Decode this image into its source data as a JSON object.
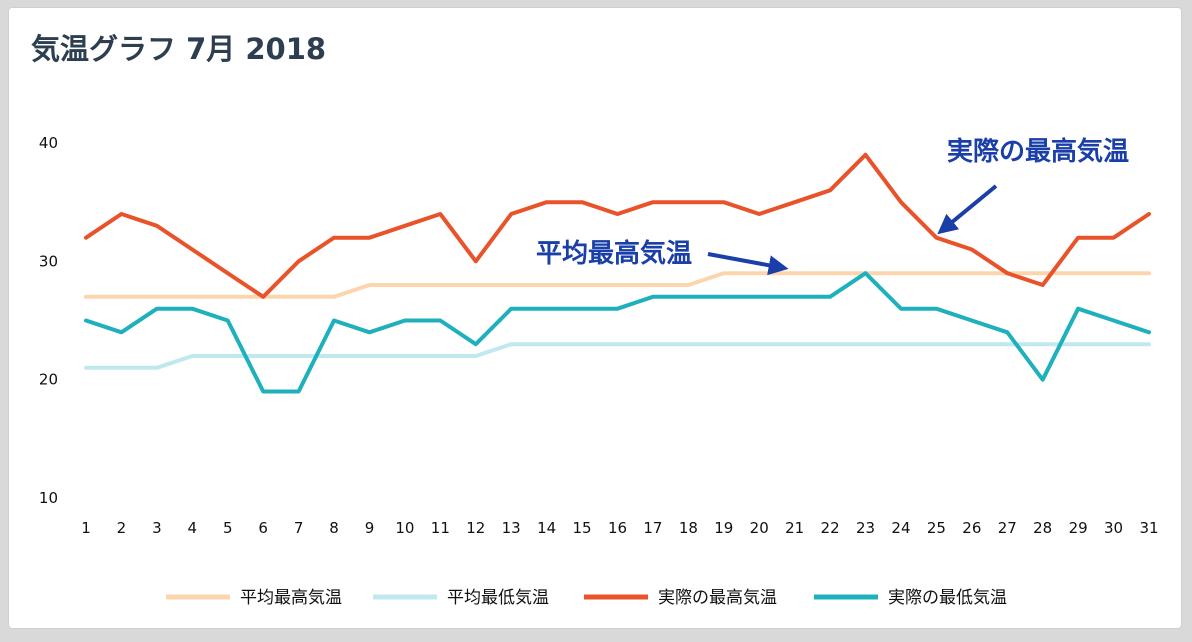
{
  "chart_data": {
    "type": "line",
    "title": "気温グラフ 7月 2018",
    "x": [
      1,
      2,
      3,
      4,
      5,
      6,
      7,
      8,
      9,
      10,
      11,
      12,
      13,
      14,
      15,
      16,
      17,
      18,
      19,
      20,
      21,
      22,
      23,
      24,
      25,
      26,
      27,
      28,
      29,
      30,
      31
    ],
    "ylim": [
      10,
      40
    ],
    "yticks": [
      10,
      20,
      30,
      40
    ],
    "xlabel": "",
    "ylabel": "",
    "grid": false,
    "legend_position": "bottom",
    "series": [
      {
        "name": "平均最高気温",
        "color": "#fdd5ad",
        "values": [
          27,
          27,
          27,
          27,
          27,
          27,
          27,
          27,
          28,
          28,
          28,
          28,
          28,
          28,
          28,
          28,
          28,
          28,
          29,
          29,
          29,
          29,
          29,
          29,
          29,
          29,
          29,
          29,
          29,
          29,
          29
        ]
      },
      {
        "name": "平均最低気温",
        "color": "#bfe8ef",
        "values": [
          21,
          21,
          21,
          22,
          22,
          22,
          22,
          22,
          22,
          22,
          22,
          22,
          23,
          23,
          23,
          23,
          23,
          23,
          23,
          23,
          23,
          23,
          23,
          23,
          23,
          23,
          23,
          23,
          23,
          23,
          23
        ]
      },
      {
        "name": "実際の最高気温",
        "color": "#e8532a",
        "values": [
          32,
          34,
          33,
          31,
          29,
          27,
          30,
          32,
          32,
          33,
          34,
          30,
          34,
          35,
          35,
          34,
          35,
          35,
          35,
          34,
          35,
          36,
          39,
          35,
          32,
          31,
          29,
          28,
          32,
          32,
          34
        ]
      },
      {
        "name": "実際の最低気温",
        "color": "#1fb0bd",
        "values": [
          25,
          24,
          26,
          26,
          25,
          19,
          19,
          25,
          24,
          25,
          25,
          23,
          26,
          26,
          26,
          26,
          27,
          27,
          27,
          27,
          27,
          27,
          29,
          26,
          26,
          25,
          24,
          20,
          26,
          25,
          24
        ]
      }
    ],
    "annotations": [
      {
        "text": "実際の最高気温",
        "series": 2,
        "day": 25,
        "color": "#1a3fa8"
      },
      {
        "text": "平均最高気温",
        "series": 0,
        "day": 21,
        "color": "#1a3fa8"
      }
    ]
  }
}
